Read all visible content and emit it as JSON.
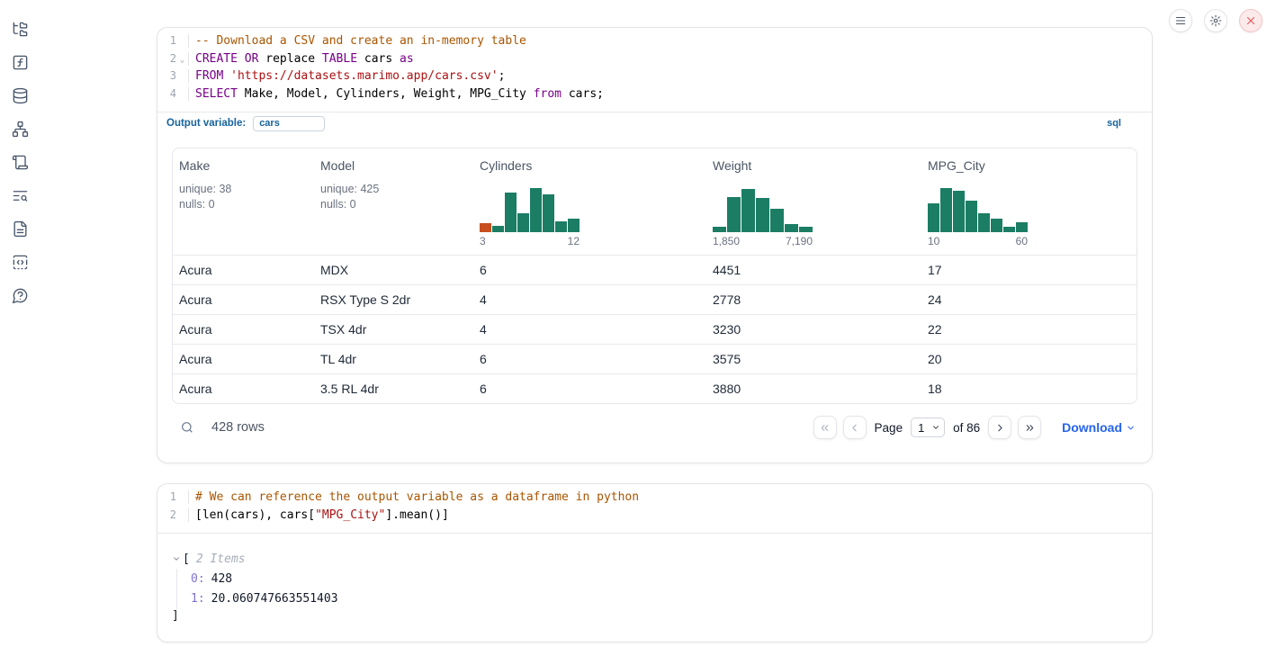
{
  "topbar": {
    "buttons": [
      {
        "name": "menu"
      },
      {
        "name": "settings"
      },
      {
        "name": "shutdown"
      }
    ]
  },
  "sidebar": {
    "icons": [
      "file-tree",
      "function-square",
      "database",
      "dependency-graph",
      "scroll",
      "logs-search",
      "document",
      "snippets",
      "help"
    ]
  },
  "colors": {
    "hist_bar": "#1b7d64",
    "hist_bar_highlight": "#c94e1e",
    "accent_blue": "#17639e",
    "link_blue": "#2563eb"
  },
  "sql_cell": {
    "language_badge": "sql",
    "output_variable_label": "Output variable:",
    "output_variable_value": "cars",
    "code": [
      {
        "n": "1",
        "fold": false,
        "tokens": [
          {
            "t": "-- Download a CSV and create an in-memory table",
            "c": "com"
          }
        ]
      },
      {
        "n": "2",
        "fold": true,
        "tokens": [
          {
            "t": "CREATE",
            "c": "kw"
          },
          {
            "t": " ",
            "c": "pl"
          },
          {
            "t": "OR",
            "c": "kw"
          },
          {
            "t": " replace ",
            "c": "pl"
          },
          {
            "t": "TABLE",
            "c": "kw"
          },
          {
            "t": " cars ",
            "c": "pl"
          },
          {
            "t": "as",
            "c": "kw"
          }
        ]
      },
      {
        "n": "3",
        "fold": false,
        "tokens": [
          {
            "t": "FROM",
            "c": "kw"
          },
          {
            "t": " ",
            "c": "pl"
          },
          {
            "t": "'https://datasets.marimo.app/cars.csv'",
            "c": "str"
          },
          {
            "t": ";",
            "c": "pl"
          }
        ]
      },
      {
        "n": "4",
        "fold": false,
        "tokens": [
          {
            "t": "SELECT",
            "c": "kw"
          },
          {
            "t": " Make, Model, Cylinders, Weight, MPG_City ",
            "c": "pl"
          },
          {
            "t": "from",
            "c": "kw"
          },
          {
            "t": " cars;",
            "c": "pl"
          }
        ]
      }
    ]
  },
  "table": {
    "columns": [
      {
        "label": "Make",
        "type": "text",
        "unique": "unique: 38",
        "nulls": "nulls: 0"
      },
      {
        "label": "Model",
        "type": "text",
        "unique": "unique: 425",
        "nulls": "nulls: 0"
      },
      {
        "label": "Cylinders",
        "type": "histogram",
        "hist": {
          "values": [
            0.19,
            0.13,
            0.85,
            0.4,
            0.94,
            0.81,
            0.23,
            0.29
          ],
          "highlight_first": true,
          "xmin": "3",
          "xmax": "12"
        }
      },
      {
        "label": "Weight",
        "type": "histogram",
        "hist": {
          "values": [
            0.12,
            0.75,
            0.92,
            0.73,
            0.5,
            0.17,
            0.12
          ],
          "highlight_first": false,
          "xmin": "1,850",
          "xmax": "7,190"
        }
      },
      {
        "label": "MPG_City",
        "type": "histogram",
        "hist": {
          "values": [
            0.62,
            0.94,
            0.88,
            0.67,
            0.4,
            0.29,
            0.12,
            0.21
          ],
          "highlight_first": false,
          "xmin": "10",
          "xmax": "60"
        }
      }
    ],
    "rows": [
      [
        "Acura",
        "MDX",
        "6",
        "4451",
        "17"
      ],
      [
        "Acura",
        "RSX Type S 2dr",
        "4",
        "2778",
        "24"
      ],
      [
        "Acura",
        "TSX 4dr",
        "4",
        "3230",
        "22"
      ],
      [
        "Acura",
        "TL 4dr",
        "6",
        "3575",
        "20"
      ],
      [
        "Acura",
        "3.5 RL 4dr",
        "6",
        "3880",
        "18"
      ]
    ],
    "footer": {
      "row_count": "428 rows",
      "page_label": "Page",
      "page_value": "1",
      "of_label": "of 86",
      "download_label": "Download"
    }
  },
  "python_cell": {
    "code": [
      {
        "n": "1",
        "fold": false,
        "tokens": [
          {
            "t": "# We can reference the output variable as a dataframe in python",
            "c": "com"
          }
        ]
      },
      {
        "n": "2",
        "fold": false,
        "tokens": [
          {
            "t": "[len(cars), cars[",
            "c": "pl"
          },
          {
            "t": "\"MPG_City\"",
            "c": "str"
          },
          {
            "t": "].mean()]",
            "c": "pl"
          }
        ]
      }
    ],
    "output_tree": {
      "open_bracket": "[",
      "items_label": "2 Items",
      "entries": [
        {
          "index": "0:",
          "value": "428"
        },
        {
          "index": "1:",
          "value": "20.060747663551403"
        }
      ],
      "close_bracket": "]"
    }
  }
}
